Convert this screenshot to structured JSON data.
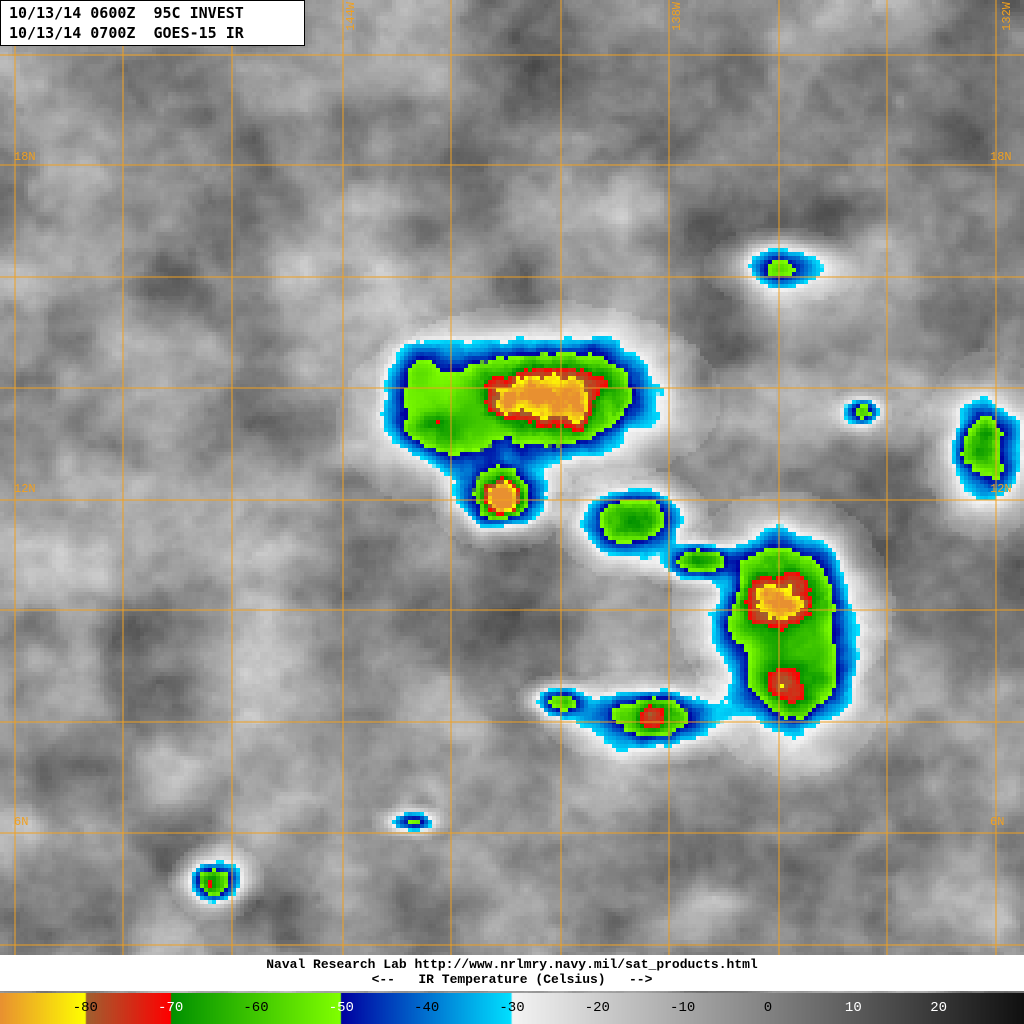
{
  "header": {
    "line1": "10/13/14 0600Z  95C INVEST",
    "line2": "10/13/14 0700Z  GOES-15 IR"
  },
  "caption": {
    "credit": "Naval Research Lab http://www.nrlmry.navy.mil/sat_products.html",
    "scale_title": "<--   IR Temperature (Celsius)   -->"
  },
  "grid": {
    "color": "#f0a020",
    "lon_labels": [
      "144W",
      "138W",
      "132W"
    ],
    "lat_labels": [
      "18N",
      "12N",
      "6N"
    ]
  },
  "colorbar": {
    "range_celsius": [
      -90,
      30
    ],
    "tick_labels": [
      "-80",
      "-70",
      "-60",
      "-50",
      "-40",
      "-30",
      "-20",
      "-10",
      "0",
      "10",
      "20"
    ],
    "stops": [
      {
        "t": -90,
        "color": "#e89030"
      },
      {
        "t": -80,
        "color": "#ffff00"
      },
      {
        "t": -79.9,
        "color": "#a06030"
      },
      {
        "t": -70,
        "color": "#ff0000"
      },
      {
        "t": -69.9,
        "color": "#009000"
      },
      {
        "t": -50.1,
        "color": "#80ff00"
      },
      {
        "t": -50,
        "color": "#0000a0"
      },
      {
        "t": -30.1,
        "color": "#00e0ff"
      },
      {
        "t": -30,
        "color": "#f4f4f4"
      },
      {
        "t": 30,
        "color": "#101010"
      }
    ]
  }
}
